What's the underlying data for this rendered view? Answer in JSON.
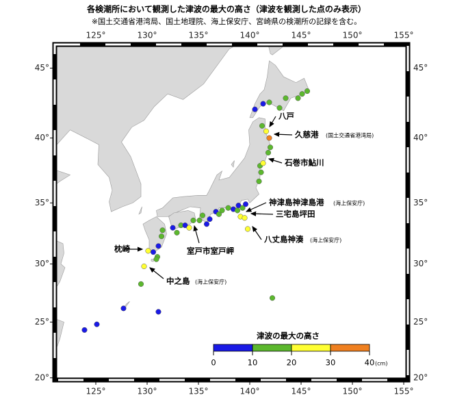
{
  "title": "各検潮所において観測した津波の最大の高さ（津波を観測した点のみ表示）",
  "subtitle": "※国土交通省港湾局、国土地理院、海上保安庁、宮崎県の検潮所の記録を含む。",
  "map": {
    "projection": "mercator",
    "xlim": [
      121,
      155.4
    ],
    "ylim": [
      19.8,
      46.6
    ],
    "xticks": [
      {
        "value": 125,
        "label": "125°"
      },
      {
        "value": 130,
        "label": "130°"
      },
      {
        "value": 135,
        "label": "135°"
      },
      {
        "value": 140,
        "label": "140°"
      },
      {
        "value": 145,
        "label": "145°"
      },
      {
        "value": 150,
        "label": "150°"
      },
      {
        "value": 155,
        "label": "155°"
      }
    ],
    "yticks": [
      {
        "value": 20,
        "label": "20°"
      },
      {
        "value": 25,
        "label": "25°"
      },
      {
        "value": 30,
        "label": "30°"
      },
      {
        "value": 35,
        "label": "35°"
      },
      {
        "value": 40,
        "label": "40°"
      },
      {
        "value": 45,
        "label": "45°"
      }
    ],
    "land_color": "#d9d9d9",
    "stations": [
      {
        "lon": 123.9,
        "lat": 24.3,
        "color": "#1a1ae6"
      },
      {
        "lon": 125.1,
        "lat": 24.8,
        "color": "#1a1ae6"
      },
      {
        "lon": 127.7,
        "lat": 26.2,
        "color": "#1a1ae6"
      },
      {
        "lon": 131.1,
        "lat": 25.9,
        "color": "#1a1ae6"
      },
      {
        "lon": 129.4,
        "lat": 28.3,
        "color": "#5cb82e"
      },
      {
        "lon": 129.7,
        "lat": 29.8,
        "color": "#ffff33"
      },
      {
        "lon": 130.1,
        "lat": 31.1,
        "color": "#ffff33"
      },
      {
        "lon": 131.0,
        "lat": 30.6,
        "color": "#5cb82e"
      },
      {
        "lon": 130.9,
        "lat": 30.4,
        "color": "#5cb82e"
      },
      {
        "lon": 130.6,
        "lat": 31.0,
        "color": "#1a1ae6"
      },
      {
        "lon": 131.1,
        "lat": 31.5,
        "color": "#1a1ae6"
      },
      {
        "lon": 131.4,
        "lat": 32.3,
        "color": "#5cb82e"
      },
      {
        "lon": 131.5,
        "lat": 32.8,
        "color": "#5cb82e"
      },
      {
        "lon": 132.5,
        "lat": 33.0,
        "color": "#1a1ae6"
      },
      {
        "lon": 132.9,
        "lat": 32.6,
        "color": "#5cb82e"
      },
      {
        "lon": 133.3,
        "lat": 33.2,
        "color": "#5cb82e"
      },
      {
        "lon": 133.7,
        "lat": 33.2,
        "color": "#1a1ae6"
      },
      {
        "lon": 134.1,
        "lat": 33.0,
        "color": "#ffff33"
      },
      {
        "lon": 134.5,
        "lat": 33.6,
        "color": "#5cb82e"
      },
      {
        "lon": 135.1,
        "lat": 33.6,
        "color": "#5cb82e"
      },
      {
        "lon": 135.4,
        "lat": 34.0,
        "color": "#5cb82e"
      },
      {
        "lon": 135.8,
        "lat": 33.3,
        "color": "#1a1ae6"
      },
      {
        "lon": 136.1,
        "lat": 33.7,
        "color": "#1a1ae6"
      },
      {
        "lon": 136.7,
        "lat": 34.3,
        "color": "#1a1ae6"
      },
      {
        "lon": 137.0,
        "lat": 34.1,
        "color": "#5cb82e"
      },
      {
        "lon": 137.3,
        "lat": 34.4,
        "color": "#5cb82e"
      },
      {
        "lon": 137.9,
        "lat": 34.6,
        "color": "#5cb82e"
      },
      {
        "lon": 138.4,
        "lat": 34.5,
        "color": "#1a1ae6"
      },
      {
        "lon": 138.9,
        "lat": 34.8,
        "color": "#1a1ae6"
      },
      {
        "lon": 139.3,
        "lat": 34.6,
        "color": "#5cb82e"
      },
      {
        "lon": 139.6,
        "lat": 34.9,
        "color": "#1a1ae6"
      },
      {
        "lon": 138.8,
        "lat": 34.4,
        "color": "#5cb82e"
      },
      {
        "lon": 139.1,
        "lat": 33.9,
        "color": "#ffff33"
      },
      {
        "lon": 139.5,
        "lat": 33.8,
        "color": "#ffff33"
      },
      {
        "lon": 139.8,
        "lat": 32.9,
        "color": "#ffff33"
      },
      {
        "lon": 140.9,
        "lat": 36.7,
        "color": "#5cb82e"
      },
      {
        "lon": 141.0,
        "lat": 37.9,
        "color": "#5cb82e"
      },
      {
        "lon": 141.1,
        "lat": 37.4,
        "color": "#5cb82e"
      },
      {
        "lon": 141.3,
        "lat": 38.1,
        "color": "#ffff33"
      },
      {
        "lon": 141.8,
        "lat": 38.9,
        "color": "#5cb82e"
      },
      {
        "lon": 142.0,
        "lat": 39.3,
        "color": "#5cb82e"
      },
      {
        "lon": 141.9,
        "lat": 40.0,
        "color": "#f08020"
      },
      {
        "lon": 141.6,
        "lat": 40.5,
        "color": "#ffff33"
      },
      {
        "lon": 141.2,
        "lat": 40.9,
        "color": "#5cb82e"
      },
      {
        "lon": 142.2,
        "lat": 27.1,
        "color": "#5cb82e"
      },
      {
        "lon": 140.5,
        "lat": 42.1,
        "color": "#1a1ae6"
      },
      {
        "lon": 141.3,
        "lat": 42.5,
        "color": "#1a1ae6"
      },
      {
        "lon": 141.9,
        "lat": 42.6,
        "color": "#5cb82e"
      },
      {
        "lon": 142.9,
        "lat": 42.2,
        "color": "#5cb82e"
      },
      {
        "lon": 143.5,
        "lat": 42.9,
        "color": "#5cb82e"
      },
      {
        "lon": 144.7,
        "lat": 42.9,
        "color": "#5cb82e"
      },
      {
        "lon": 145.1,
        "lat": 43.2,
        "color": "#5cb82e"
      },
      {
        "lon": 145.6,
        "lat": 43.4,
        "color": "#5cb82e"
      }
    ],
    "annotations": [
      {
        "text": "八戸"
      },
      {
        "text": "久慈港",
        "note": "(国土交通省港湾局)"
      },
      {
        "text": "石巻市鮎川"
      },
      {
        "text": "神津島神津島港",
        "note": "(海上保安庁)"
      },
      {
        "text": "三宅島坪田"
      },
      {
        "text": "八丈島神湊",
        "note": "(海上保安庁)"
      },
      {
        "text": "室戸市室戸岬"
      },
      {
        "text": "枕崎"
      },
      {
        "text": "中之島",
        "note": "(海上保安庁)"
      }
    ],
    "legend": {
      "title": "津波の最大の高さ",
      "ticks": [
        0,
        10,
        20,
        30,
        40
      ],
      "unit": "(cm)",
      "colors": [
        "#1a1ae6",
        "#5cb82e",
        "#ffff33",
        "#f08020"
      ]
    }
  }
}
